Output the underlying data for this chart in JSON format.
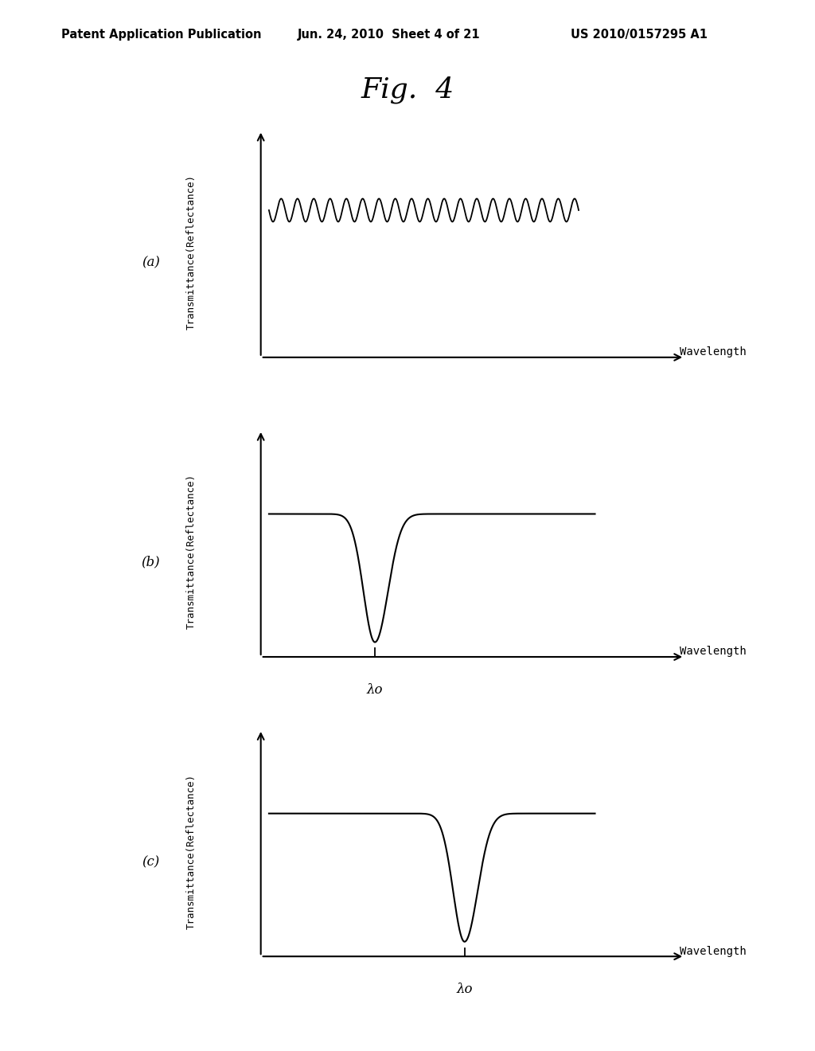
{
  "fig_title": "Fig.  4",
  "header_left": "Patent Application Publication",
  "header_mid": "Jun. 24, 2010  Sheet 4 of 21",
  "header_right": "US 2010/0157295 A1",
  "panels": [
    "(a)",
    "(b)",
    "(c)"
  ],
  "ylabel": "Transmittance(Reflectance)",
  "xlabel": "Wavelength",
  "lambda_label": "λo",
  "background_color": "#ffffff",
  "line_color": "#000000",
  "font_size_header": 10.5,
  "font_size_title": 26,
  "font_size_label": 10,
  "font_size_panel": 12,
  "font_size_ylabel": 9,
  "font_size_lambda": 12
}
